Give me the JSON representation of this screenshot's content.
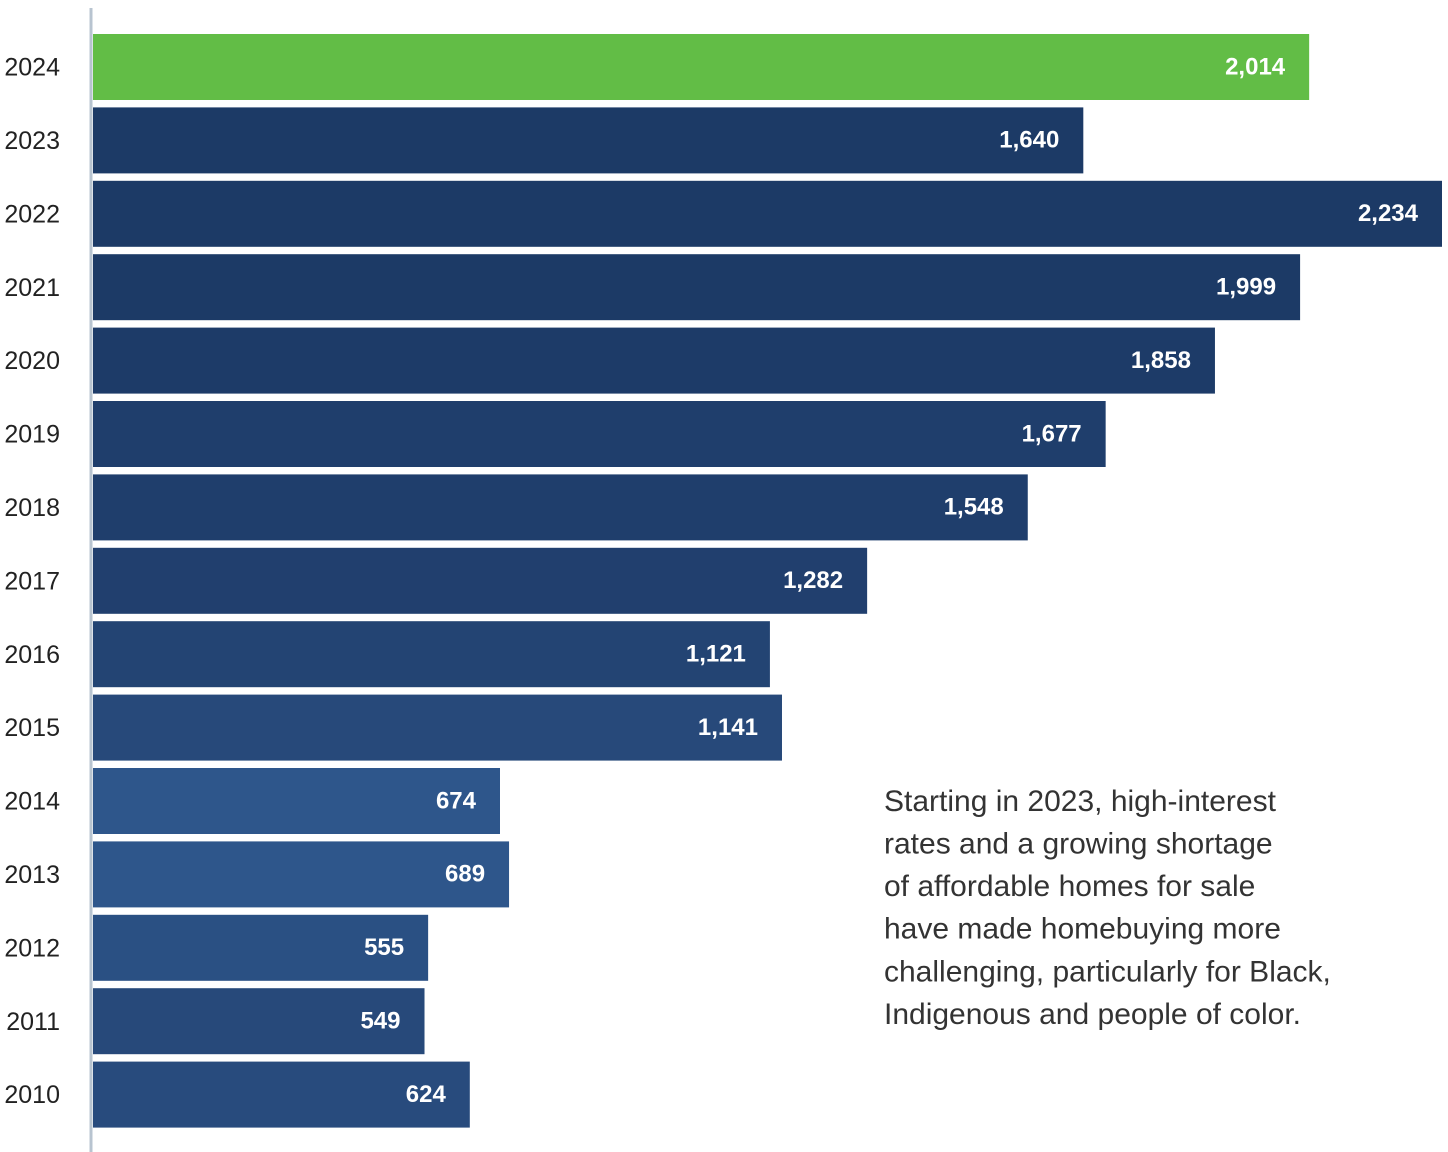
{
  "chart_data": {
    "type": "barh",
    "categories": [
      "2024",
      "2023",
      "2022",
      "2021",
      "2020",
      "2019",
      "2018",
      "2017",
      "2016",
      "2015",
      "2014",
      "2013",
      "2012",
      "2011",
      "2010"
    ],
    "values": [
      2014,
      1640,
      2234,
      1999,
      1858,
      1677,
      1548,
      1282,
      1121,
      1141,
      674,
      689,
      555,
      549,
      624
    ],
    "value_labels": [
      "2,014",
      "1,640",
      "2,234",
      "1,999",
      "1,858",
      "1,677",
      "1,548",
      "1,282",
      "1,121",
      "1,141",
      "674",
      "689",
      "555",
      "549",
      "624"
    ],
    "colors": [
      "#62bd46",
      "#1c3a66",
      "#1c3a66",
      "#1c3a66",
      "#1d3b68",
      "#1f3e6c",
      "#1f3e6c",
      "#213f6e",
      "#234473",
      "#27497a",
      "#2e568b",
      "#2e568b",
      "#2a5083",
      "#27497a",
      "#284b7d"
    ],
    "annotation": [
      "Starting in 2023, high-interest",
      "rates and a growing shortage",
      "of affordable homes for sale",
      "have made homebuying more",
      "challenging, particularly for Black,",
      "Indigenous and people of color."
    ]
  }
}
